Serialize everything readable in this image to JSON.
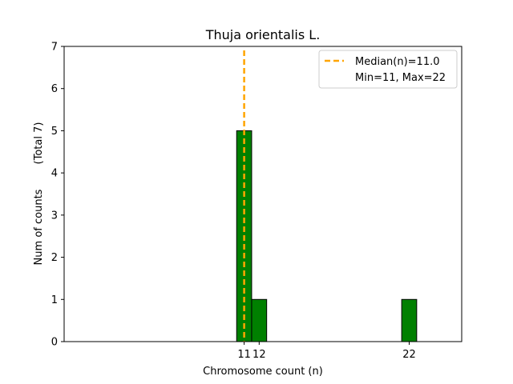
{
  "chart_data": {
    "type": "bar",
    "title": "Thuja orientalis L.",
    "xlabel": "Chromosome count (n)",
    "ylabel": "Num of counts",
    "ylabel_note": "(Total 7)",
    "xlim": [
      -1,
      25.5
    ],
    "ylim": [
      0,
      7
    ],
    "yticks": [
      0,
      1,
      2,
      3,
      4,
      5,
      6,
      7
    ],
    "xticks": [
      11,
      12,
      22
    ],
    "bar_width": 1,
    "bars": [
      {
        "x": 11,
        "value": 5
      },
      {
        "x": 12,
        "value": 1
      },
      {
        "x": 22,
        "value": 1
      }
    ],
    "bar_color": "#008000",
    "median": 11.0,
    "median_color": "#FFA500",
    "legend": {
      "position": "top-right",
      "entries": [
        "Median(n)=11.0",
        "Min=11, Max=22"
      ]
    }
  }
}
